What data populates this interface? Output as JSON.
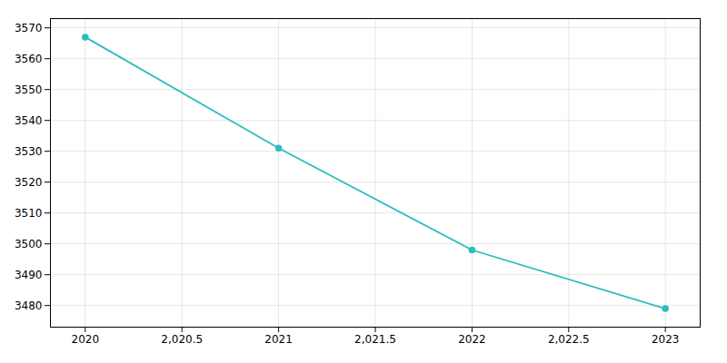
{
  "chart_data": {
    "type": "line",
    "x": [
      2020,
      2021,
      2022,
      2023
    ],
    "values": [
      3567,
      3531,
      3498,
      3479
    ],
    "color": "#2bbcbf",
    "marker": "circle",
    "xlim": [
      2019.82,
      2023.18
    ],
    "ylim": [
      3473,
      3573
    ],
    "xticks": [
      2020,
      {
        "value": 2020.5,
        "label": "2,020.5"
      },
      2021,
      {
        "value": 2021.5,
        "label": "2,021.5"
      },
      2022,
      {
        "value": 2022.5,
        "label": "2,022.5"
      },
      2023
    ],
    "yticks": [
      3480,
      3490,
      3500,
      3510,
      3520,
      3530,
      3540,
      3550,
      3560,
      3570
    ],
    "grid": true
  }
}
